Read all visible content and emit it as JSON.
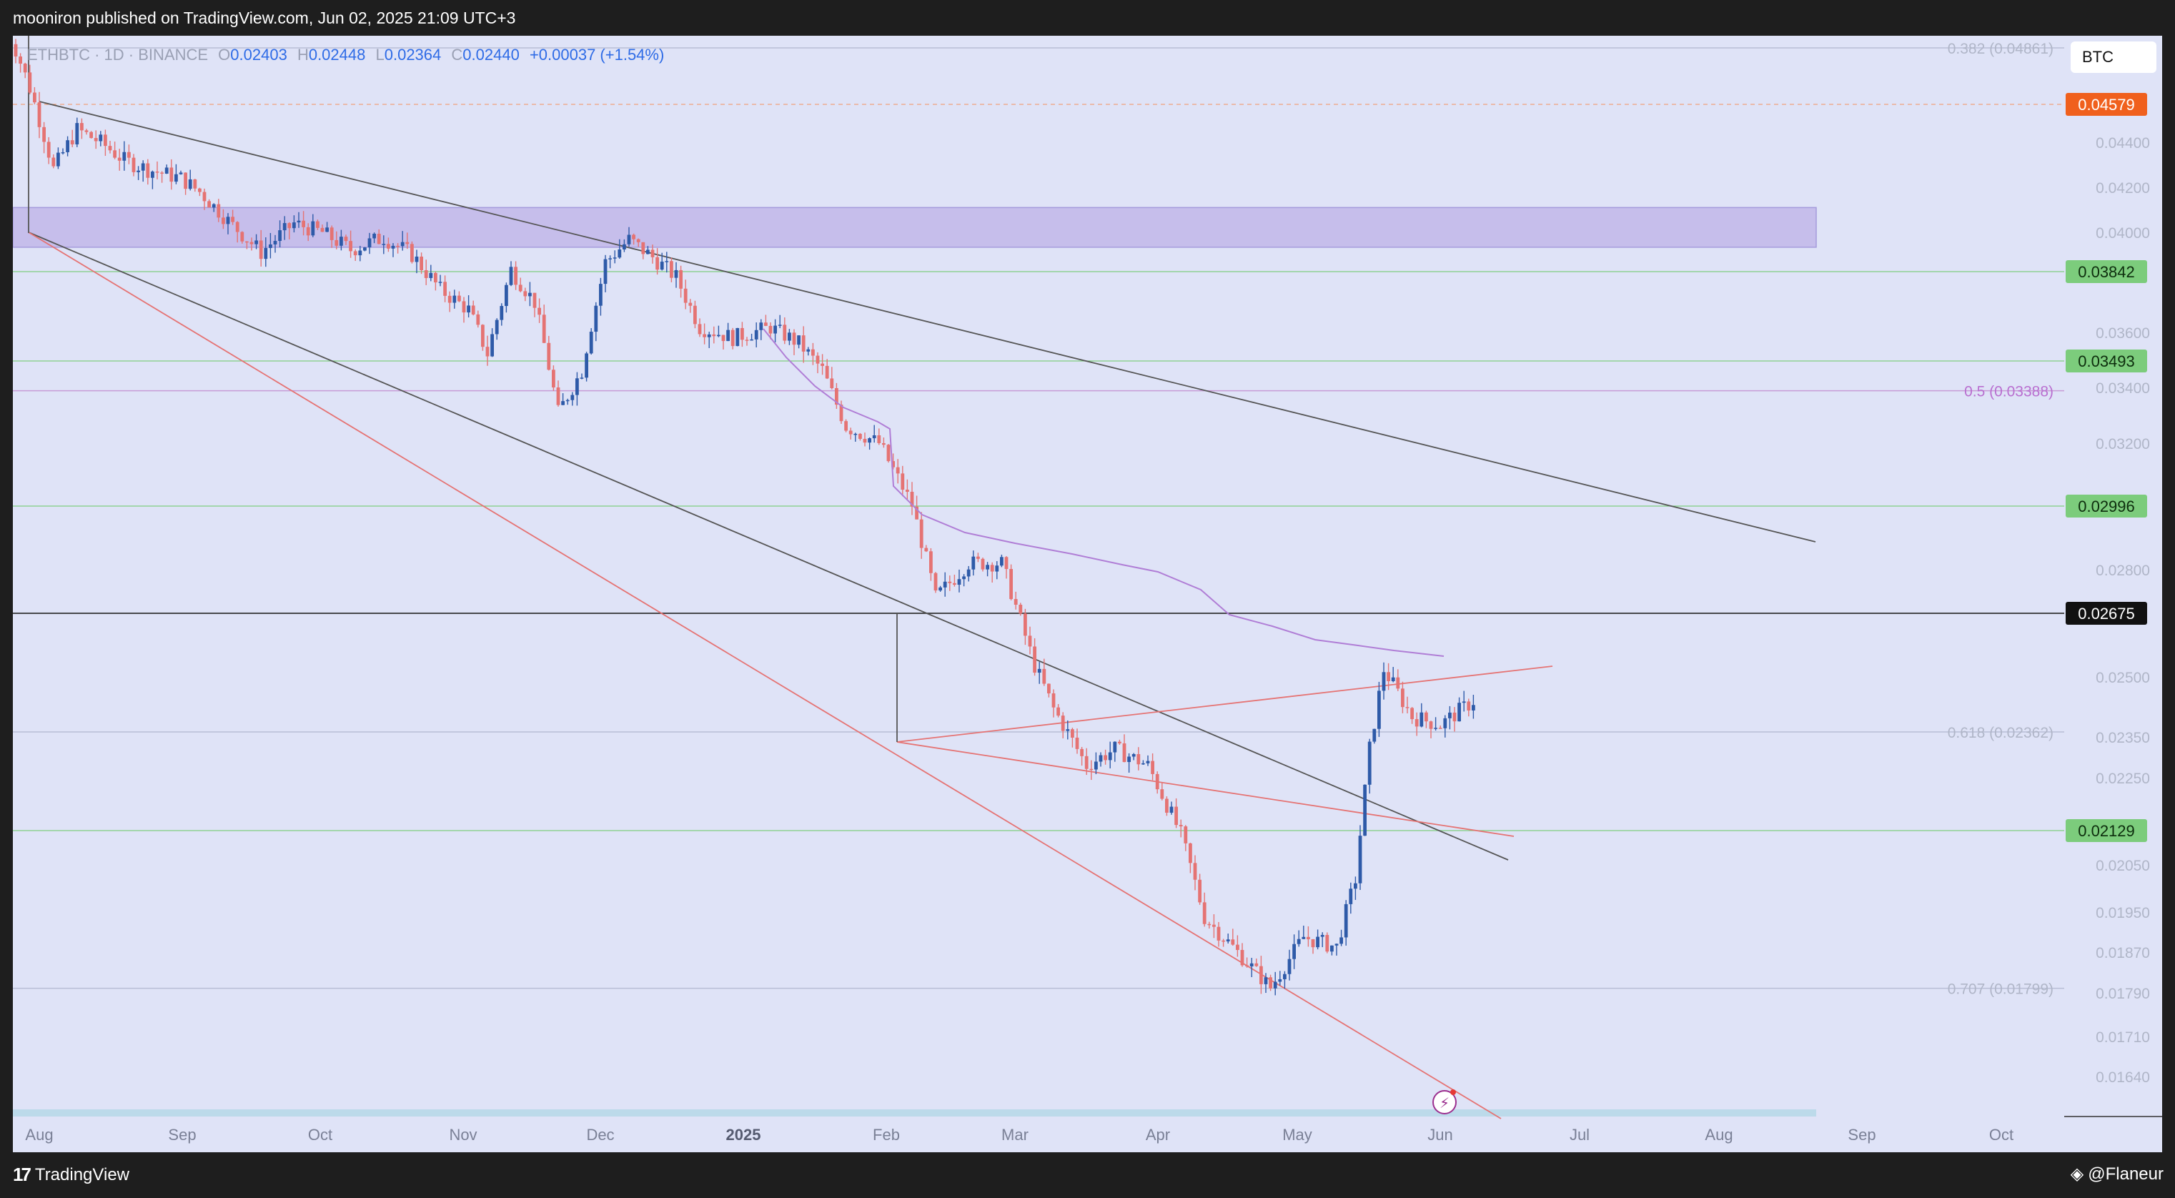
{
  "header": {
    "published": "mooniron published on TradingView.com, Jun 02, 2025 21:09 UTC+3",
    "symbol": "ETHBTC · 1D · BINANCE",
    "ohlc": [
      {
        "label": "O",
        "value": "0.02403"
      },
      {
        "label": "H",
        "value": "0.02448"
      },
      {
        "label": "L",
        "value": "0.02364"
      },
      {
        "label": "C",
        "value": "0.02440"
      }
    ],
    "change": "+0.00037 (+1.54%)",
    "currency": "BTC"
  },
  "footer": {
    "brand": "TradingView",
    "author": "@Flaneur"
  },
  "colors": {
    "background": "#dfe3f7",
    "up": "#2e5aa8",
    "down": "#e57373",
    "ma": "#b07ed6",
    "zone": "#c2b8ea",
    "green_label": "#7ccc7c",
    "orange_label": "#f0601d"
  },
  "chart_data": {
    "type": "candlestick",
    "x_ticks": [
      "Aug",
      "Sep",
      "Oct",
      "Nov",
      "Dec",
      "2025",
      "Feb",
      "Mar",
      "Apr",
      "May",
      "Jun",
      "Jul",
      "Aug",
      "Sep",
      "Oct"
    ],
    "y_ticks": [
      "0.04400",
      "0.04200",
      "0.04000",
      "0.03600",
      "0.03400",
      "0.03200",
      "0.02800",
      "0.02500",
      "0.02350",
      "0.02250",
      "0.02050",
      "0.01950",
      "0.01870",
      "0.01790",
      "0.01710",
      "0.01640"
    ],
    "price_labels": [
      {
        "value": "0.04579",
        "style": "orange"
      },
      {
        "value": "0.03842",
        "style": "green"
      },
      {
        "value": "0.03493",
        "style": "green"
      },
      {
        "value": "0.02996",
        "style": "green"
      },
      {
        "value": "0.02675",
        "style": "black"
      },
      {
        "value": "0.02129",
        "style": "green"
      }
    ],
    "fib_levels": [
      {
        "label": "0.382 (0.04861)",
        "value": 0.04861
      },
      {
        "label": "0.5 (0.03388)",
        "value": 0.03388
      },
      {
        "label": "0.618 (0.02362)",
        "value": 0.02362
      },
      {
        "label": "0.707 (0.01799)",
        "value": 0.01799
      }
    ],
    "zone": {
      "from": 0.0394,
      "to": 0.0411
    },
    "close_path": [
      [
        "2024-07-25",
        0.0505
      ],
      [
        "2024-07-31",
        0.0466
      ],
      [
        "2024-08-05",
        0.0428
      ],
      [
        "2024-08-10",
        0.0446
      ],
      [
        "2024-08-15",
        0.044
      ],
      [
        "2024-08-20",
        0.0432
      ],
      [
        "2024-08-25",
        0.0428
      ],
      [
        "2024-09-01",
        0.0424
      ],
      [
        "2024-09-05",
        0.0418
      ],
      [
        "2024-09-12",
        0.0403
      ],
      [
        "2024-09-18",
        0.0392
      ],
      [
        "2024-09-25",
        0.0404
      ],
      [
        "2024-10-01",
        0.04
      ],
      [
        "2024-10-07",
        0.0393
      ],
      [
        "2024-10-14",
        0.0398
      ],
      [
        "2024-10-20",
        0.0391
      ],
      [
        "2024-10-26",
        0.0377
      ],
      [
        "2024-11-01",
        0.0369
      ],
      [
        "2024-11-05",
        0.0352
      ],
      [
        "2024-11-10",
        0.0385
      ],
      [
        "2024-11-15",
        0.0372
      ],
      [
        "2024-11-20",
        0.0331
      ],
      [
        "2024-11-25",
        0.0346
      ],
      [
        "2024-11-30",
        0.0388
      ],
      [
        "2024-12-05",
        0.0397
      ],
      [
        "2024-12-10",
        0.039
      ],
      [
        "2024-12-15",
        0.0382
      ],
      [
        "2024-12-20",
        0.0362
      ],
      [
        "2024-12-27",
        0.0358
      ],
      [
        "2025-01-04",
        0.0362
      ],
      [
        "2025-01-10",
        0.0356
      ],
      [
        "2025-01-15",
        0.0346
      ],
      [
        "2025-01-20",
        0.0326
      ],
      [
        "2025-01-27",
        0.032
      ],
      [
        "2025-02-03",
        0.03
      ],
      [
        "2025-02-08",
        0.0272
      ],
      [
        "2025-02-15",
        0.0282
      ],
      [
        "2025-02-22",
        0.0282
      ],
      [
        "2025-03-01",
        0.0253
      ],
      [
        "2025-03-05",
        0.0242
      ],
      [
        "2025-03-12",
        0.0228
      ],
      [
        "2025-03-18",
        0.0232
      ],
      [
        "2025-03-25",
        0.0228
      ],
      [
        "2025-04-01",
        0.0212
      ],
      [
        "2025-04-06",
        0.0194
      ],
      [
        "2025-04-12",
        0.0188
      ],
      [
        "2025-04-20",
        0.018
      ],
      [
        "2025-04-27",
        0.019
      ],
      [
        "2025-05-04",
        0.0188
      ],
      [
        "2025-05-08",
        0.0202
      ],
      [
        "2025-05-11",
        0.0232
      ],
      [
        "2025-05-14",
        0.0252
      ],
      [
        "2025-05-20",
        0.024
      ],
      [
        "2025-05-26",
        0.0238
      ],
      [
        "2025-06-02",
        0.0244
      ]
    ]
  }
}
